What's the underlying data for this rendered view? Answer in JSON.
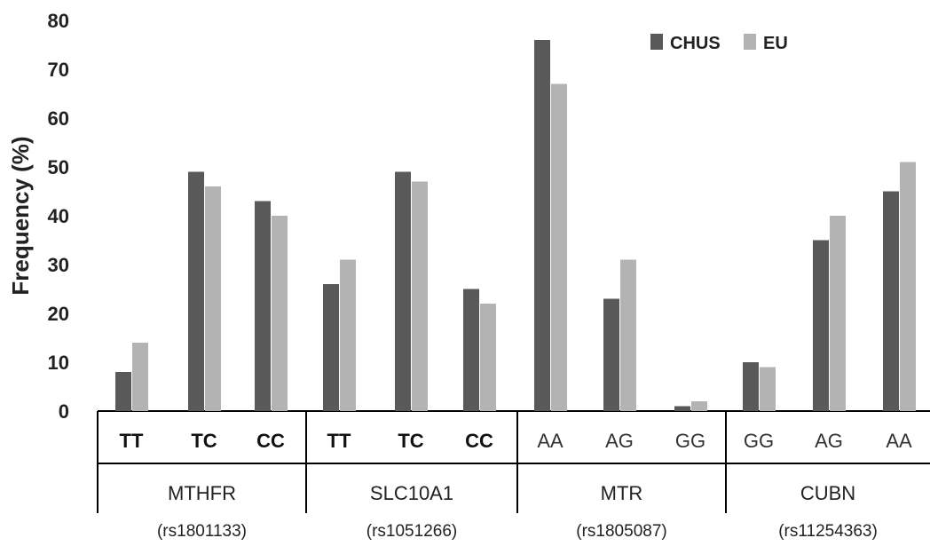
{
  "chart_data": {
    "type": "bar",
    "title": "",
    "ylabel": "Frequency (%)",
    "xlabel": "",
    "ylim": [
      0,
      80
    ],
    "yticks": [
      0,
      10,
      20,
      30,
      40,
      50,
      60,
      70,
      80
    ],
    "grid": false,
    "legend_position": "top-right",
    "groups": [
      {
        "gene": "MTHFR",
        "snp": "(rs1801133)",
        "genotypes": [
          "TT",
          "TC",
          "CC"
        ],
        "bold": true
      },
      {
        "gene": "SLC10A1",
        "snp": "(rs1051266)",
        "genotypes": [
          "TT",
          "TC",
          "CC"
        ],
        "bold": true
      },
      {
        "gene": "MTR",
        "snp": "(rs1805087)",
        "genotypes": [
          "AA",
          "AG",
          "GG"
        ],
        "bold": false
      },
      {
        "gene": "CUBN",
        "snp": "(rs11254363)",
        "genotypes": [
          "GG",
          "AG",
          "AA"
        ],
        "bold": false
      }
    ],
    "categories": [
      "TT",
      "TC",
      "CC",
      "TT",
      "TC",
      "CC",
      "AA",
      "AG",
      "GG",
      "GG",
      "AG",
      "AA"
    ],
    "series": [
      {
        "name": "CHUS",
        "color": "#595959",
        "values": [
          8,
          49,
          43,
          26,
          49,
          25,
          76,
          23,
          1,
          10,
          35,
          45
        ]
      },
      {
        "name": "EU",
        "color": "#b3b3b3",
        "values": [
          14,
          46,
          40,
          31,
          47,
          22,
          67,
          31,
          2,
          9,
          40,
          51
        ]
      }
    ]
  }
}
